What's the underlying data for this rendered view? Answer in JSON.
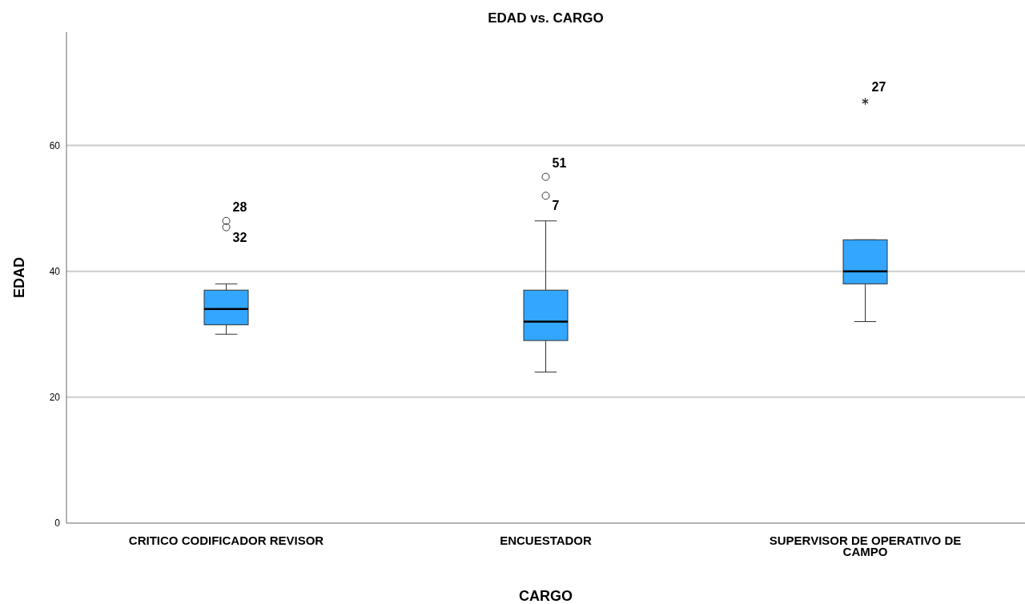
{
  "chart_data": {
    "type": "box",
    "title": "EDAD vs. CARGO",
    "xlabel": "CARGO",
    "ylabel": "EDAD",
    "color": "#33a6ff",
    "categories": [
      "CRITICO CODIFICADOR REVISOR",
      "ENCUESTADOR",
      "SUPERVISOR DE OPERATIVO DE CAMPO"
    ],
    "boxes": [
      {
        "low": 30,
        "q1": 31.5,
        "median": 34,
        "q3": 37,
        "high": 38,
        "outliers": [
          48,
          47
        ]
      },
      {
        "low": 24,
        "q1": 29,
        "median": 32,
        "q3": 37,
        "high": 48,
        "outliers": [
          55,
          52
        ]
      },
      {
        "low": 32,
        "q1": 38,
        "median": 40,
        "q3": 45,
        "high": 45,
        "outliers": [
          67
        ]
      }
    ],
    "ylim": [
      0,
      78
    ],
    "yticks": [
      0,
      20,
      40,
      60
    ],
    "grid": "y",
    "annotations": [
      "28",
      "32",
      "51",
      "7",
      "27"
    ]
  }
}
